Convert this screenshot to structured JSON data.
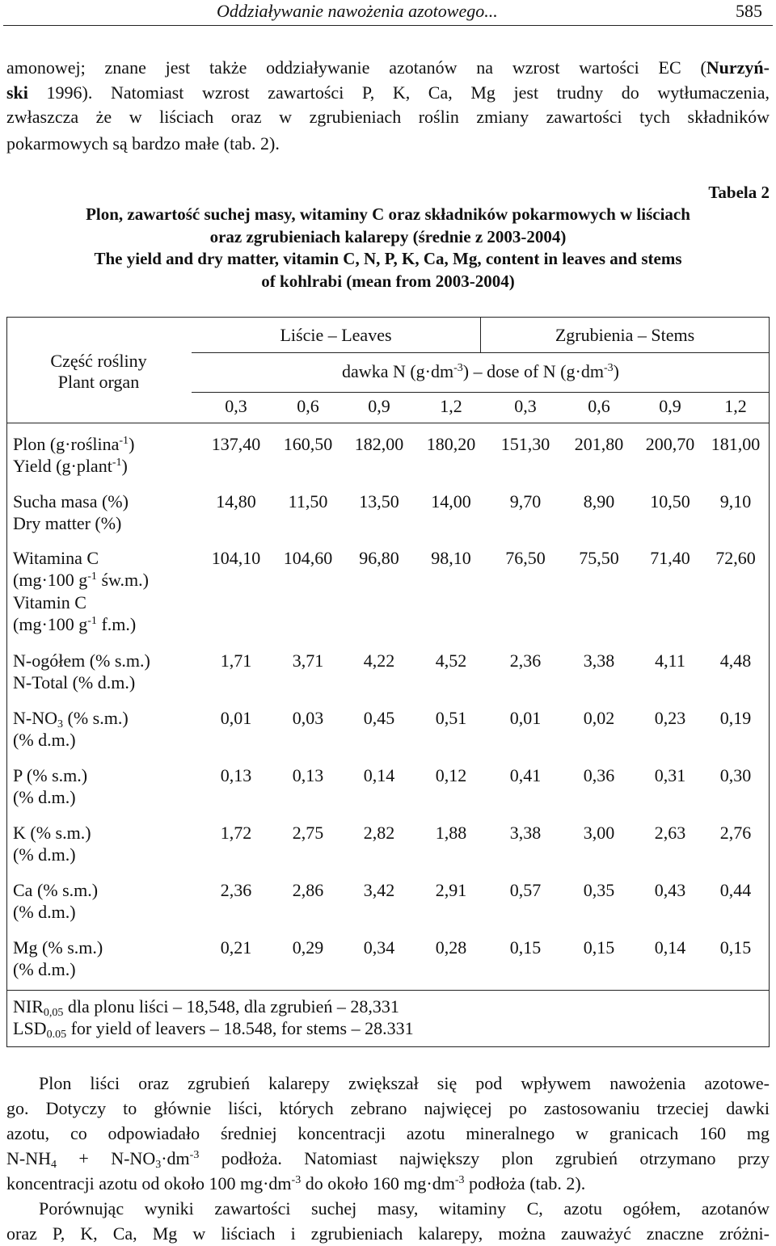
{
  "header": {
    "running_title": "Oddziaływanie nawożenia azotowego...",
    "page_number": "585"
  },
  "intro": [
    [
      "amonowej; znane jest także oddziaływanie azotanów na wzrost wartości EC (",
      "Nurzyń-"
    ],
    [
      "ski",
      " 1996). Natomiast wzrost zawartości P, K, Ca, Mg jest trudny do wytłumaczenia,"
    ],
    [
      "zwłaszcza że w liściach oraz w zgrubieniach roślin zmiany zawartości tych składników"
    ],
    [
      "pokarmowych są bardzo małe (tab. 2)."
    ]
  ],
  "caption": {
    "label": "Tabela 2",
    "title": [
      "Plon, zawartość suchej masy, witaminy C oraz składników pokarmowych w liściach",
      "oraz zgrubieniach kalarepy (średnie z 2003-2004)",
      "The yield and dry matter, vitamin C, N, P, K, Ca, Mg, content in leaves and stems",
      "of kohlrabi (mean from 2003-2004)"
    ]
  },
  "table": {
    "organ_header": [
      "Część rośliny",
      "Plant organ"
    ],
    "groups": [
      "Liście – Leaves",
      "Zgrubienia – Stems"
    ],
    "dose_header": [
      "dawka N (g·dm",
      "-3",
      ") – dose of N (g·dm",
      "-3",
      ")"
    ],
    "doses": [
      "0,3",
      "0,6",
      "0,9",
      "1,2",
      "0,3",
      "0,6",
      "0,9",
      "1,2"
    ],
    "rows": [
      {
        "label": [
          [
            "Plon (g·roślina",
            "-1",
            ")"
          ],
          [
            "Yield (g·plant",
            "-1",
            ")"
          ]
        ],
        "values": [
          "137,40",
          "160,50",
          "182,00",
          "180,20",
          "151,30",
          "201,80",
          "200,70",
          "181,00"
        ]
      },
      {
        "label": [
          [
            "Sucha masa (%)"
          ],
          [
            "Dry matter (%)"
          ]
        ],
        "values": [
          "14,80",
          "11,50",
          "13,50",
          "14,00",
          "9,70",
          "8,90",
          "10,50",
          "9,10"
        ]
      },
      {
        "label": [
          [
            "Witamina C"
          ],
          [
            "(mg·100 g",
            "-1",
            " św.m.)"
          ],
          [
            "Vitamin C"
          ],
          [
            "(mg·100 g",
            "-1",
            " f.m.)"
          ]
        ],
        "values": [
          "104,10",
          "104,60",
          "96,80",
          "98,10",
          "76,50",
          "75,50",
          "71,40",
          "72,60"
        ]
      },
      {
        "label": [
          [
            "N-ogółem (% s.m.)"
          ],
          [
            "N-Total (% d.m.)"
          ]
        ],
        "values": [
          "1,71",
          "3,71",
          "4,22",
          "4,52",
          "2,36",
          "3,38",
          "4,11",
          "4,48"
        ]
      },
      {
        "label": [
          [
            "N-NO",
            "3",
            " (% s.m.)"
          ],
          [
            "(% d.m.)"
          ]
        ],
        "values": [
          "0,01",
          "0,03",
          "0,45",
          "0,51",
          "0,01",
          "0,02",
          "0,23",
          "0,19"
        ]
      },
      {
        "label": [
          [
            "P (% s.m.)"
          ],
          [
            "(% d.m.)"
          ]
        ],
        "values": [
          "0,13",
          "0,13",
          "0,14",
          "0,12",
          "0,41",
          "0,36",
          "0,31",
          "0,30"
        ]
      },
      {
        "label": [
          [
            "K (% s.m.)"
          ],
          [
            "(% d.m.)"
          ]
        ],
        "values": [
          "1,72",
          "2,75",
          "2,82",
          "1,88",
          "3,38",
          "3,00",
          "2,63",
          "2,76"
        ]
      },
      {
        "label": [
          [
            "Ca (% s.m.)"
          ],
          [
            "(% d.m.)"
          ]
        ],
        "values": [
          "2,36",
          "2,86",
          "3,42",
          "2,91",
          "0,57",
          "0,35",
          "0,43",
          "0,44"
        ]
      },
      {
        "label": [
          [
            "Mg (% s.m.)"
          ],
          [
            "(% d.m.)"
          ]
        ],
        "values": [
          "0,21",
          "0,29",
          "0,34",
          "0,28",
          "0,15",
          "0,15",
          "0,14",
          "0,15"
        ]
      }
    ],
    "note": [
      [
        "NIR",
        "0,05",
        " dla plonu liści – 18,548, dla zgrubień – 28,331"
      ],
      [
        "LSD",
        "0.05",
        " for yield of leavers – 18.548, for stems – 28.331"
      ]
    ]
  },
  "body": [
    [
      "Plon liści oraz zgrubień kalarepy zwiększał się pod wpływem nawożenia azotowe-"
    ],
    [
      "go. Dotyczy to głównie liści, których zebrano najwięcej po zastosowaniu trzeciej dawki"
    ],
    [
      "azotu, co odpowiadało średniej koncentracji azotu mineralnego w granicach 160 mg"
    ],
    [
      "N-NH",
      "4",
      " + N-NO",
      "3",
      "·dm",
      "-3",
      " podłoża. Natomiast największy plon zgrubień otrzymano przy"
    ],
    [
      "koncentracji azotu od około 100 mg·dm",
      "-3",
      " do około 160 mg·dm",
      "-3",
      " podłoża (tab. 2)."
    ],
    [
      "Porównując wyniki zawartości suchej masy, witaminy C, azotu ogółem, azotanów"
    ],
    [
      "oraz P, K, Ca, Mg w liściach i zgrubieniach kalarepy, można zauważyć znaczne zróżni-"
    ]
  ]
}
